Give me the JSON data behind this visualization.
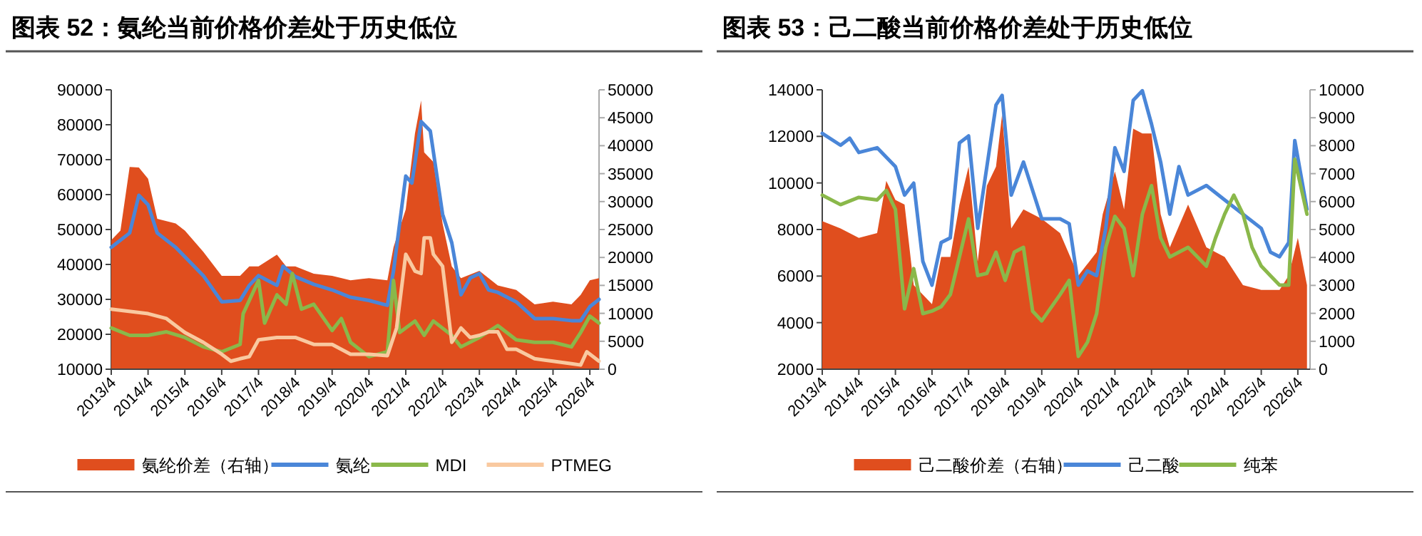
{
  "chart_data": [
    {
      "type": "line",
      "title": "图表 52：氨纶当前价格价差处于历史低位",
      "legend": "bottom",
      "xlim": [
        "2013-04",
        "2026-07"
      ],
      "ylim": [
        10000,
        90000
      ],
      "yticks": [
        10000,
        20000,
        30000,
        40000,
        50000,
        60000,
        70000,
        80000,
        90000
      ],
      "y2lim": [
        0,
        50000
      ],
      "y2ticks": [
        0,
        5000,
        10000,
        15000,
        20000,
        25000,
        30000,
        35000,
        40000,
        45000,
        50000
      ],
      "xticks": [
        {
          "value": "2013-04",
          "label": "2013/4"
        },
        {
          "value": "2014-04",
          "label": "2014/4"
        },
        {
          "value": "2015-04",
          "label": "2015/4"
        },
        {
          "value": "2016-04",
          "label": "2016/4"
        },
        {
          "value": "2017-04",
          "label": "2017/4"
        },
        {
          "value": "2018-04",
          "label": "2018/4"
        },
        {
          "value": "2019-04",
          "label": "2019/4"
        },
        {
          "value": "2020-04",
          "label": "2020/4"
        },
        {
          "value": "2021-04",
          "label": "2021/4"
        },
        {
          "value": "2022-04",
          "label": "2022/4"
        },
        {
          "value": "2023-04",
          "label": "2023/4"
        },
        {
          "value": "2024-04",
          "label": "2024/4"
        },
        {
          "value": "2025-04",
          "label": "2025/4"
        },
        {
          "value": "2026-04",
          "label": "2026/4"
        }
      ],
      "series": [
        {
          "name": "氨纶价差（右轴）",
          "type": "area",
          "axis": "y2",
          "color": "#e04e1e",
          "x": [
            "2013-04",
            "2013-07",
            "2013-10",
            "2014-01",
            "2014-04",
            "2014-07",
            "2015-01",
            "2015-04",
            "2015-10",
            "2016-04",
            "2016-10",
            "2017-01",
            "2017-04",
            "2017-10",
            "2018-01",
            "2018-04",
            "2018-10",
            "2019-04",
            "2019-10",
            "2020-04",
            "2020-10",
            "2020-12",
            "2021-04",
            "2021-07",
            "2021-09",
            "2021-10",
            "2022-01",
            "2022-04",
            "2022-07",
            "2022-10",
            "2023-04",
            "2023-10",
            "2024-04",
            "2024-10",
            "2025-04",
            "2025-10",
            "2026-01",
            "2026-04",
            "2026-07"
          ],
          "values": [
            23100,
            24800,
            36200,
            36100,
            34100,
            26900,
            26100,
            24800,
            21000,
            16700,
            16700,
            18400,
            18400,
            20500,
            18400,
            18400,
            17100,
            16700,
            15900,
            16300,
            15900,
            21800,
            28600,
            42200,
            48100,
            38800,
            37100,
            26100,
            18400,
            16300,
            17600,
            15000,
            14200,
            11600,
            12100,
            11600,
            13300,
            15900,
            16300
          ]
        },
        {
          "name": "氨纶",
          "color": "#4a86d8",
          "x": [
            "2013-04",
            "2013-10",
            "2014-01",
            "2014-04",
            "2014-07",
            "2015-01",
            "2015-04",
            "2015-10",
            "2016-04",
            "2016-10",
            "2017-01",
            "2017-04",
            "2017-10",
            "2017-12",
            "2018-04",
            "2018-10",
            "2019-04",
            "2019-10",
            "2020-04",
            "2020-10",
            "2020-12",
            "2021-04",
            "2021-06",
            "2021-09",
            "2021-12",
            "2022-04",
            "2022-07",
            "2022-10",
            "2023-01",
            "2023-04",
            "2023-07",
            "2023-10",
            "2024-04",
            "2024-10",
            "2025-04",
            "2025-10",
            "2026-01",
            "2026-04",
            "2026-07"
          ],
          "values": [
            44900,
            49000,
            59800,
            57100,
            49000,
            44900,
            42200,
            36800,
            29300,
            29700,
            34000,
            36800,
            34000,
            39500,
            36500,
            34300,
            32700,
            30600,
            29700,
            28300,
            38100,
            65300,
            63300,
            80900,
            78200,
            54400,
            46200,
            31300,
            36100,
            37400,
            32700,
            32000,
            29300,
            24500,
            24500,
            23900,
            23900,
            27900,
            30000
          ]
        },
        {
          "name": "MDI",
          "color": "#8ab84a",
          "x": [
            "2013-04",
            "2013-10",
            "2014-04",
            "2014-10",
            "2015-04",
            "2015-10",
            "2016-04",
            "2016-10",
            "2016-11",
            "2017-04",
            "2017-06",
            "2017-10",
            "2018-01",
            "2018-03",
            "2018-06",
            "2018-10",
            "2019-04",
            "2019-07",
            "2019-10",
            "2020-04",
            "2020-10",
            "2020-12",
            "2021-02",
            "2021-07",
            "2021-10",
            "2022-01",
            "2022-07",
            "2022-10",
            "2023-04",
            "2023-10",
            "2024-04",
            "2024-10",
            "2025-04",
            "2025-10",
            "2026-01",
            "2026-04",
            "2026-07"
          ],
          "values": [
            21800,
            19700,
            19700,
            20700,
            19100,
            16400,
            15000,
            17100,
            25900,
            35400,
            23200,
            31300,
            28600,
            37400,
            27200,
            28600,
            21100,
            24500,
            17700,
            13600,
            15000,
            35400,
            20500,
            23800,
            19700,
            23800,
            19700,
            16400,
            19100,
            22500,
            18400,
            17700,
            17700,
            16400,
            20500,
            25200,
            23200
          ]
        },
        {
          "name": "PTMEG",
          "color": "#f9c9a0",
          "x": [
            "2013-04",
            "2014-04",
            "2014-10",
            "2015-04",
            "2015-10",
            "2016-04",
            "2016-07",
            "2016-10",
            "2017-01",
            "2017-04",
            "2017-10",
            "2018-04",
            "2018-10",
            "2019-04",
            "2019-10",
            "2020-04",
            "2020-10",
            "2021-01",
            "2021-04",
            "2021-07",
            "2021-09",
            "2021-10",
            "2021-12",
            "2022-01",
            "2022-04",
            "2022-07",
            "2022-10",
            "2023-01",
            "2023-04",
            "2023-07",
            "2023-10",
            "2024-01",
            "2024-04",
            "2024-10",
            "2025-04",
            "2025-10",
            "2026-01",
            "2026-03",
            "2026-07"
          ],
          "values": [
            27200,
            25900,
            24500,
            20500,
            17700,
            14300,
            12300,
            13000,
            13600,
            18400,
            19100,
            19100,
            17100,
            17100,
            14300,
            14300,
            13900,
            21800,
            42900,
            38100,
            37400,
            47600,
            47600,
            42900,
            39500,
            17700,
            21800,
            19100,
            19700,
            20700,
            20700,
            15700,
            15700,
            13000,
            12300,
            11600,
            11200,
            15000,
            12300
          ]
        }
      ]
    },
    {
      "type": "line",
      "title": "图表 53：己二酸当前价格价差处于历史低位",
      "legend": "bottom",
      "xlim": [
        "2013-04",
        "2026-08"
      ],
      "ylim": [
        2000,
        14000
      ],
      "yticks": [
        2000,
        4000,
        6000,
        8000,
        10000,
        12000,
        14000
      ],
      "y2lim": [
        0,
        10000
      ],
      "y2ticks": [
        0,
        1000,
        2000,
        3000,
        4000,
        5000,
        6000,
        7000,
        8000,
        9000,
        10000
      ],
      "xticks": [
        {
          "value": "2013-04",
          "label": "2013/4"
        },
        {
          "value": "2014-04",
          "label": "2014/4"
        },
        {
          "value": "2015-04",
          "label": "2015/4"
        },
        {
          "value": "2016-04",
          "label": "2016/4"
        },
        {
          "value": "2017-04",
          "label": "2017/4"
        },
        {
          "value": "2018-04",
          "label": "2018/4"
        },
        {
          "value": "2019-04",
          "label": "2019/4"
        },
        {
          "value": "2020-04",
          "label": "2020/4"
        },
        {
          "value": "2021-04",
          "label": "2021/4"
        },
        {
          "value": "2022-04",
          "label": "2022/4"
        },
        {
          "value": "2023-04",
          "label": "2023/4"
        },
        {
          "value": "2024-04",
          "label": "2024/4"
        },
        {
          "value": "2025-04",
          "label": "2025/4"
        },
        {
          "value": "2026-04",
          "label": "2026/4"
        }
      ],
      "series": [
        {
          "name": "己二酸价差（右轴）",
          "type": "area",
          "axis": "y2",
          "color": "#e04e1e",
          "x": [
            "2013-04",
            "2013-10",
            "2014-04",
            "2014-10",
            "2015-01",
            "2015-04",
            "2015-07",
            "2015-10",
            "2016-04",
            "2016-07",
            "2016-10",
            "2017-01",
            "2017-04",
            "2017-07",
            "2017-10",
            "2018-01",
            "2018-03",
            "2018-06",
            "2018-10",
            "2019-04",
            "2019-10",
            "2020-04",
            "2020-10",
            "2020-12",
            "2021-04",
            "2021-07",
            "2021-10",
            "2022-01",
            "2022-04",
            "2022-07",
            "2022-10",
            "2023-04",
            "2023-10",
            "2024-04",
            "2024-10",
            "2025-04",
            "2025-10",
            "2026-01",
            "2026-04",
            "2026-07"
          ],
          "values": [
            5300,
            5040,
            4700,
            4870,
            6740,
            6060,
            5890,
            3010,
            2330,
            4020,
            4020,
            5890,
            7250,
            3850,
            6570,
            7250,
            9120,
            5040,
            5720,
            5380,
            4870,
            3350,
            4190,
            5550,
            7080,
            5720,
            8610,
            8440,
            8440,
            5550,
            4360,
            5890,
            4360,
            4020,
            3010,
            2840,
            2840,
            3350,
            4700,
            3010
          ]
        },
        {
          "name": "己二酸",
          "color": "#4a86d8",
          "x": [
            "2013-04",
            "2013-10",
            "2014-01",
            "2014-04",
            "2014-10",
            "2015-04",
            "2015-07",
            "2015-10",
            "2016-01",
            "2016-04",
            "2016-07",
            "2016-10",
            "2017-01",
            "2017-04",
            "2017-07",
            "2017-10",
            "2018-01",
            "2018-03",
            "2018-06",
            "2018-10",
            "2019-04",
            "2019-10",
            "2020-01",
            "2020-04",
            "2020-07",
            "2020-10",
            "2021-01",
            "2021-04",
            "2021-07",
            "2021-10",
            "2022-01",
            "2022-04",
            "2022-07",
            "2022-10",
            "2023-01",
            "2023-04",
            "2023-10",
            "2024-04",
            "2024-10",
            "2025-04",
            "2025-07",
            "2025-10",
            "2026-01",
            "2026-03",
            "2026-07"
          ],
          "values": [
            12130,
            11620,
            11920,
            11310,
            11510,
            10700,
            9480,
            9990,
            6630,
            5610,
            7440,
            7640,
            11720,
            12020,
            8050,
            10700,
            13350,
            13760,
            9480,
            10900,
            8460,
            8460,
            8250,
            5610,
            6220,
            6020,
            8050,
            11510,
            10500,
            13550,
            13960,
            12530,
            10900,
            8660,
            10700,
            9480,
            9890,
            9270,
            8660,
            8050,
            7030,
            6830,
            7440,
            11820,
            8870
          ]
        },
        {
          "name": "纯苯",
          "axis": "y2",
          "color": "#8ab84a",
          "x": [
            "2013-04",
            "2013-10",
            "2014-04",
            "2014-10",
            "2015-01",
            "2015-04",
            "2015-07",
            "2015-10",
            "2016-01",
            "2016-04",
            "2016-07",
            "2016-10",
            "2017-01",
            "2017-04",
            "2017-07",
            "2017-10",
            "2018-01",
            "2018-04",
            "2018-07",
            "2018-10",
            "2019-01",
            "2019-04",
            "2019-10",
            "2020-01",
            "2020-04",
            "2020-07",
            "2020-10",
            "2021-01",
            "2021-04",
            "2021-07",
            "2021-10",
            "2022-01",
            "2022-04",
            "2022-07",
            "2022-10",
            "2023-04",
            "2023-10",
            "2024-01",
            "2024-04",
            "2024-07",
            "2024-10",
            "2025-01",
            "2025-04",
            "2025-07",
            "2025-10",
            "2026-01",
            "2026-03",
            "2026-07"
          ],
          "values": [
            6230,
            5890,
            6150,
            6060,
            6400,
            5720,
            2160,
            3600,
            1990,
            2080,
            2240,
            2670,
            4020,
            5380,
            3350,
            3430,
            4190,
            3180,
            4190,
            4360,
            2080,
            1730,
            2670,
            3180,
            460,
            970,
            1990,
            4360,
            5470,
            5040,
            3350,
            5550,
            6570,
            4700,
            4020,
            4360,
            3690,
            4700,
            5550,
            6230,
            5550,
            4360,
            3690,
            3350,
            3010,
            3010,
            7510,
            5550
          ]
        }
      ]
    }
  ]
}
